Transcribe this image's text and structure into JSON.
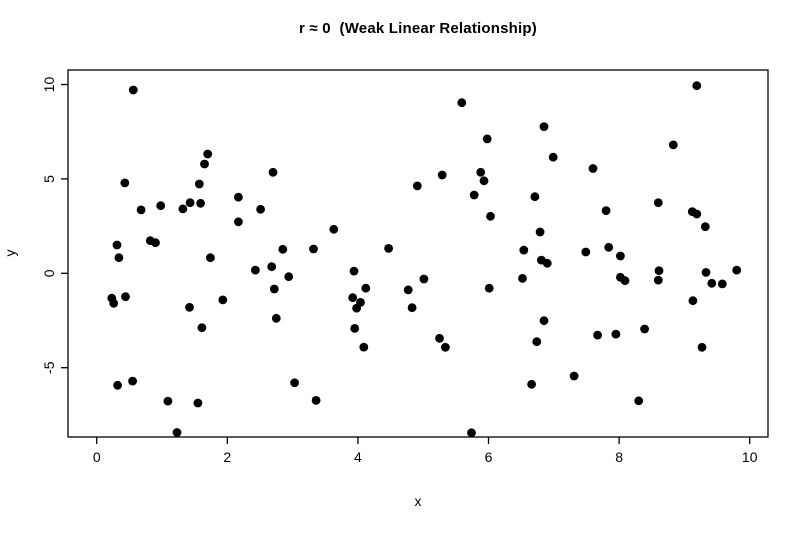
{
  "title": "r ≈ 0  (Weak Linear Relationship)",
  "chart_data": {
    "type": "scatter",
    "title": "r ≈ 0  (Weak Linear Relationship)",
    "xlabel": "x",
    "ylabel": "y",
    "xlim": [
      -0.44,
      10.28
    ],
    "ylim": [
      -8.67,
      10.77
    ],
    "x_ticks": [
      0,
      2,
      4,
      6,
      8,
      10
    ],
    "y_ticks": [
      -5,
      0,
      5,
      10
    ],
    "grid": false,
    "legend": false,
    "point_color": "#000000",
    "axis_color": "#000000",
    "point_radius_px": 4.4,
    "points": [
      [
        0.56,
        9.71
      ],
      [
        1.7,
        6.32
      ],
      [
        1.65,
        5.79
      ],
      [
        0.43,
        4.79
      ],
      [
        1.57,
        4.73
      ],
      [
        2.7,
        5.35
      ],
      [
        4.91,
        4.63
      ],
      [
        5.59,
        9.04
      ],
      [
        6.85,
        7.77
      ],
      [
        5.98,
        7.12
      ],
      [
        6.99,
        6.15
      ],
      [
        5.29,
        5.21
      ],
      [
        5.88,
        5.35
      ],
      [
        5.93,
        4.9
      ],
      [
        7.6,
        5.55
      ],
      [
        9.19,
        9.94
      ],
      [
        8.83,
        6.8
      ],
      [
        0.68,
        3.36
      ],
      [
        0.98,
        3.58
      ],
      [
        1.32,
        3.41
      ],
      [
        1.43,
        3.74
      ],
      [
        1.59,
        3.71
      ],
      [
        2.17,
        4.03
      ],
      [
        2.17,
        2.73
      ],
      [
        0.31,
        1.5
      ],
      [
        0.82,
        1.73
      ],
      [
        0.9,
        1.62
      ],
      [
        0.34,
        0.83
      ],
      [
        1.74,
        0.83
      ],
      [
        0.23,
        -1.32
      ],
      [
        0.26,
        -1.59
      ],
      [
        0.44,
        -1.24
      ],
      [
        1.42,
        -1.8
      ],
      [
        1.93,
        -1.41
      ],
      [
        2.51,
        3.39
      ],
      [
        3.63,
        2.33
      ],
      [
        2.85,
        1.27
      ],
      [
        3.32,
        1.29
      ],
      [
        4.47,
        1.32
      ],
      [
        2.43,
        0.17
      ],
      [
        2.68,
        0.35
      ],
      [
        2.94,
        -0.18
      ],
      [
        2.72,
        -0.83
      ],
      [
        3.94,
        0.12
      ],
      [
        4.12,
        -0.79
      ],
      [
        3.92,
        -1.29
      ],
      [
        4.04,
        -1.54
      ],
      [
        3.98,
        -1.85
      ],
      [
        4.77,
        -0.88
      ],
      [
        4.83,
        -1.82
      ],
      [
        5.78,
        4.15
      ],
      [
        6.71,
        4.06
      ],
      [
        6.03,
        3.02
      ],
      [
        6.79,
        2.19
      ],
      [
        6.54,
        1.23
      ],
      [
        6.81,
        0.7
      ],
      [
        6.9,
        0.53
      ],
      [
        7.49,
        1.13
      ],
      [
        5.01,
        -0.3
      ],
      [
        6.52,
        -0.27
      ],
      [
        6.01,
        -0.79
      ],
      [
        7.8,
        3.32
      ],
      [
        8.6,
        3.74
      ],
      [
        9.12,
        3.27
      ],
      [
        9.19,
        3.14
      ],
      [
        9.32,
        2.47
      ],
      [
        7.84,
        1.38
      ],
      [
        8.02,
        0.92
      ],
      [
        8.02,
        -0.21
      ],
      [
        8.09,
        -0.39
      ],
      [
        8.61,
        0.14
      ],
      [
        8.6,
        -0.36
      ],
      [
        9.33,
        0.05
      ],
      [
        9.42,
        -0.53
      ],
      [
        9.58,
        -0.56
      ],
      [
        9.8,
        0.17
      ],
      [
        9.13,
        -1.45
      ],
      [
        1.61,
        -2.88
      ],
      [
        0.32,
        -5.93
      ],
      [
        0.55,
        -5.71
      ],
      [
        1.09,
        -6.77
      ],
      [
        1.55,
        -6.87
      ],
      [
        1.23,
        -8.43
      ],
      [
        2.75,
        -2.38
      ],
      [
        3.95,
        -2.92
      ],
      [
        4.09,
        -3.91
      ],
      [
        3.03,
        -5.8
      ],
      [
        3.36,
        -6.73
      ],
      [
        5.25,
        -3.44
      ],
      [
        5.34,
        -3.92
      ],
      [
        6.85,
        -2.51
      ],
      [
        6.74,
        -3.62
      ],
      [
        7.67,
        -3.27
      ],
      [
        7.31,
        -5.44
      ],
      [
        6.66,
        -5.88
      ],
      [
        5.74,
        -8.45
      ],
      [
        7.95,
        -3.22
      ],
      [
        8.39,
        -2.95
      ],
      [
        9.27,
        -3.92
      ],
      [
        8.3,
        -6.75
      ]
    ]
  }
}
